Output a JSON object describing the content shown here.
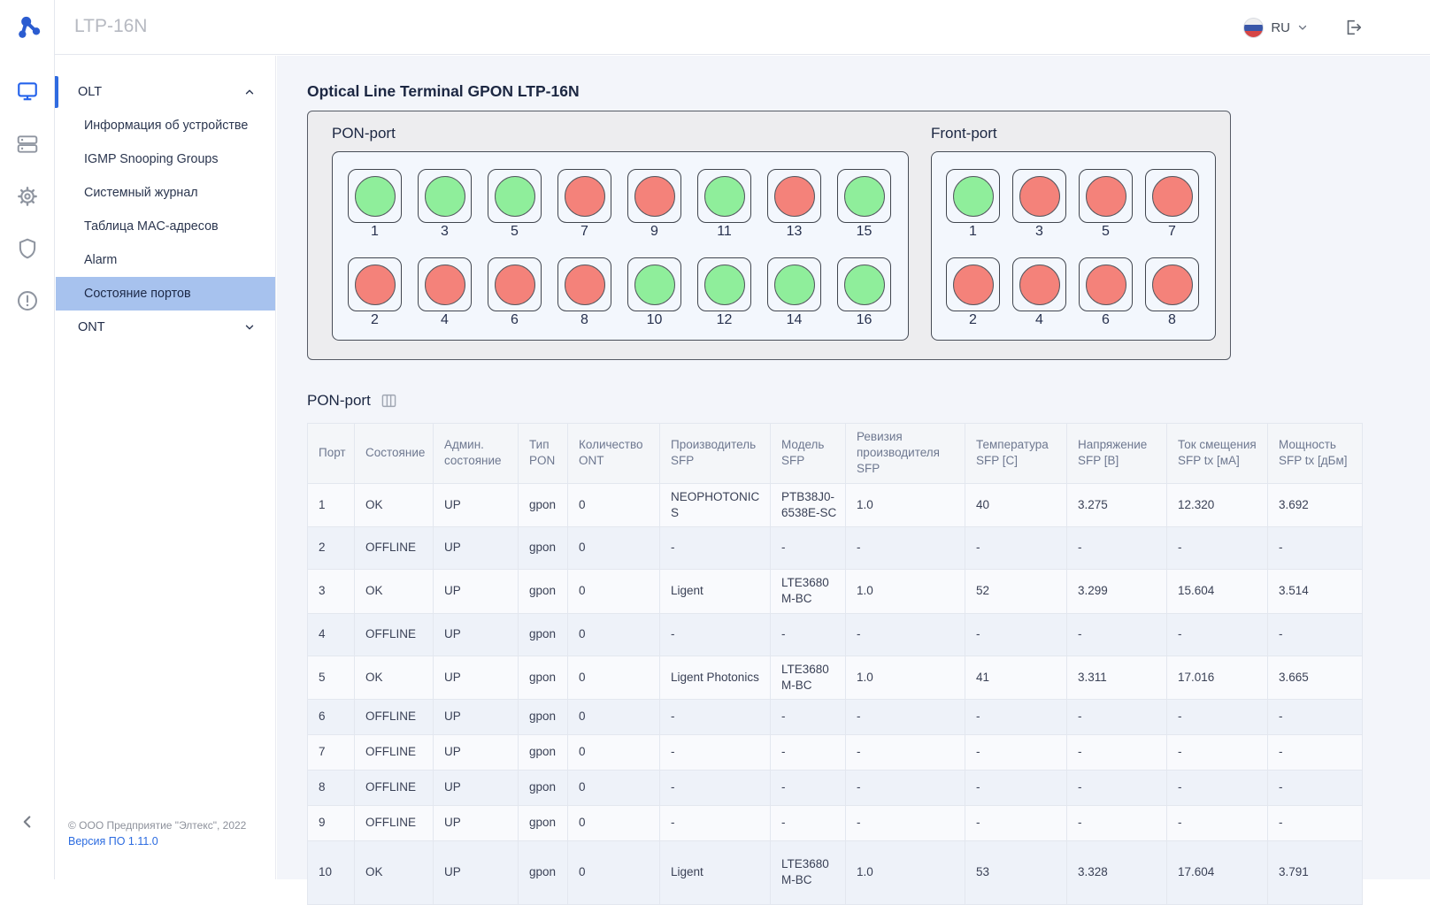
{
  "app": {
    "title": "LTP-16N"
  },
  "header": {
    "language": "RU"
  },
  "sidebar": {
    "groups": [
      {
        "label": "OLT",
        "expanded": true,
        "items": [
          "Информация об устройстве",
          "IGMP Snooping Groups",
          "Системный журнал",
          "Таблица MAC-адресов",
          "Alarm",
          "Состояние портов"
        ],
        "active_index": 5
      },
      {
        "label": "ONT",
        "expanded": false,
        "items": []
      }
    ],
    "footer_copyright": "© ООО Предприятие \"Элтекс\", 2022",
    "footer_version": "Версия ПО 1.11.0"
  },
  "main": {
    "page_title": "Optical Line Terminal GPON LTP-16N",
    "device_panel": {
      "pon": {
        "title": "PON-port",
        "rows": [
          [
            {
              "n": 1,
              "s": "up"
            },
            {
              "n": 3,
              "s": "up"
            },
            {
              "n": 5,
              "s": "up"
            },
            {
              "n": 7,
              "s": "down"
            },
            {
              "n": 9,
              "s": "down"
            },
            {
              "n": 11,
              "s": "up"
            },
            {
              "n": 13,
              "s": "down"
            },
            {
              "n": 15,
              "s": "up"
            }
          ],
          [
            {
              "n": 2,
              "s": "down"
            },
            {
              "n": 4,
              "s": "down"
            },
            {
              "n": 6,
              "s": "down"
            },
            {
              "n": 8,
              "s": "down"
            },
            {
              "n": 10,
              "s": "up"
            },
            {
              "n": 12,
              "s": "up"
            },
            {
              "n": 14,
              "s": "up"
            },
            {
              "n": 16,
              "s": "up"
            }
          ]
        ]
      },
      "front": {
        "title": "Front-port",
        "rows": [
          [
            {
              "n": 1,
              "s": "up"
            },
            {
              "n": 3,
              "s": "down"
            },
            {
              "n": 5,
              "s": "down"
            },
            {
              "n": 7,
              "s": "down"
            }
          ],
          [
            {
              "n": 2,
              "s": "down"
            },
            {
              "n": 4,
              "s": "down"
            },
            {
              "n": 6,
              "s": "down"
            },
            {
              "n": 8,
              "s": "down"
            }
          ]
        ]
      }
    },
    "table_section": {
      "title": "PON-port",
      "columns": [
        "Порт",
        "Состояние",
        "Админ. состояние",
        "Тип PON",
        "Количество ONT",
        "Производитель SFP",
        "Модель SFP",
        "Ревизия производителя SFP",
        "Температура SFP [C]",
        "Напряжение SFP [B]",
        "Ток смещения SFP tx [мА]",
        "Мощность SFP tx [дБм]"
      ],
      "rows": [
        [
          "1",
          "OK",
          "UP",
          "gpon",
          "0",
          "NEOPHOTONICS",
          "PTB38J0-6538E-SC",
          "1.0",
          "40",
          "3.275",
          "12.320",
          "3.692"
        ],
        [
          "2",
          "OFFLINE",
          "UP",
          "gpon",
          "0",
          "-",
          "-",
          "-",
          "-",
          "-",
          "-",
          "-"
        ],
        [
          "3",
          "OK",
          "UP",
          "gpon",
          "0",
          "Ligent",
          "LTE3680M-BC",
          "1.0",
          "52",
          "3.299",
          "15.604",
          "3.514"
        ],
        [
          "4",
          "OFFLINE",
          "UP",
          "gpon",
          "0",
          "-",
          "-",
          "-",
          "-",
          "-",
          "-",
          "-"
        ],
        [
          "5",
          "OK",
          "UP",
          "gpon",
          "0",
          "Ligent Photonics",
          "LTE3680M-BC",
          "1.0",
          "41",
          "3.311",
          "17.016",
          "3.665"
        ],
        [
          "6",
          "OFFLINE",
          "UP",
          "gpon",
          "0",
          "-",
          "-",
          "-",
          "-",
          "-",
          "-",
          "-"
        ],
        [
          "7",
          "OFFLINE",
          "UP",
          "gpon",
          "0",
          "-",
          "-",
          "-",
          "-",
          "-",
          "-",
          "-"
        ],
        [
          "8",
          "OFFLINE",
          "UP",
          "gpon",
          "0",
          "-",
          "-",
          "-",
          "-",
          "-",
          "-",
          "-"
        ],
        [
          "9",
          "OFFLINE",
          "UP",
          "gpon",
          "0",
          "-",
          "-",
          "-",
          "-",
          "-",
          "-",
          "-"
        ],
        [
          "10",
          "OK",
          "UP",
          "gpon",
          "0",
          "Ligent",
          "LTE3680M-BC",
          "1.0",
          "53",
          "3.328",
          "17.604",
          "3.791"
        ]
      ]
    }
  },
  "colors": {
    "status_up": "#8fee9b",
    "status_down": "#f4827a",
    "accent_blue": "#2f6be0",
    "active_item_bg": "#a7c2ee"
  }
}
